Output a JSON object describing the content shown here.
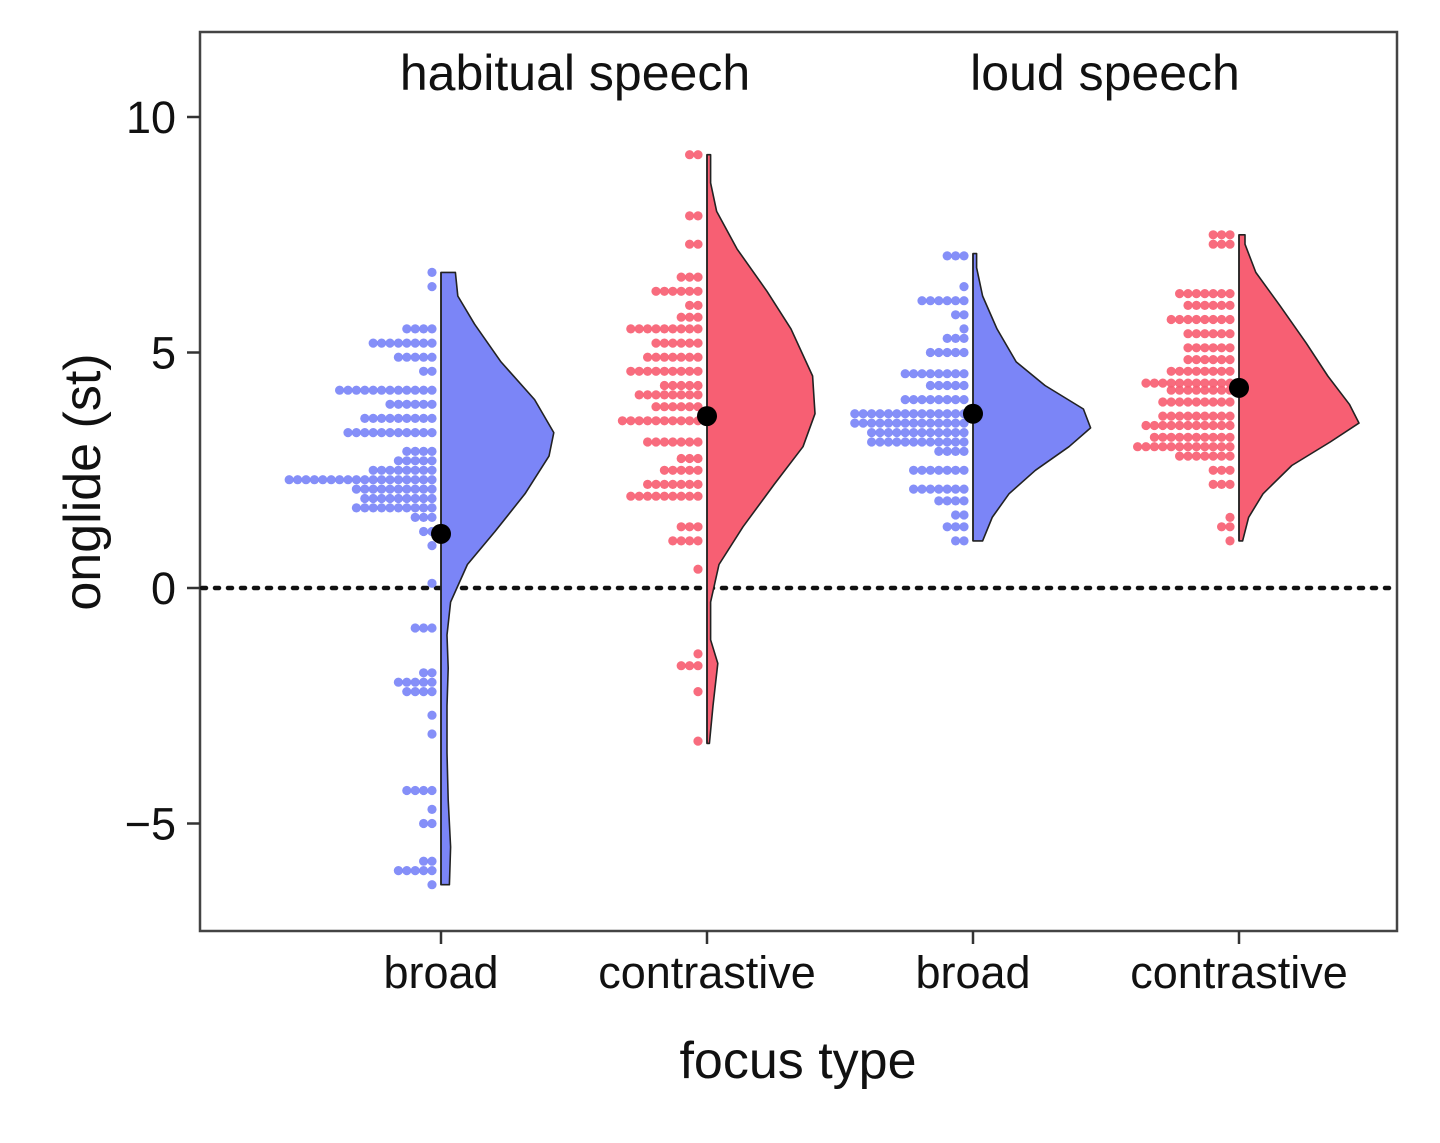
{
  "chart_data": {
    "type": "raincloud",
    "xlabel": "focus type",
    "ylabel": "onglide (st)",
    "ylim": [
      -7.3,
      12.0
    ],
    "yticks": [
      -5,
      0,
      5,
      10
    ],
    "ytick_labels": [
      "−5",
      "0",
      "5",
      "10"
    ],
    "reference_line": {
      "y": 0,
      "style": "dotted"
    },
    "groups": [
      {
        "label": "habitual speech"
      },
      {
        "label": "loud speech"
      }
    ],
    "categories": [
      "broad",
      "contrastive",
      "broad",
      "contrastive"
    ],
    "colors": {
      "broad": "#7b85f7",
      "contrastive": "#f75f73"
    },
    "series": [
      {
        "group": "habitual speech",
        "category": "broad",
        "color": "#7b85f7",
        "mean": 1.15,
        "range": [
          -6.3,
          6.7
        ],
        "density": [
          [
            -6.3,
            0.07
          ],
          [
            -5.5,
            0.08
          ],
          [
            -4.5,
            0.06
          ],
          [
            -3.5,
            0.05
          ],
          [
            -2.5,
            0.05
          ],
          [
            -1.7,
            0.06
          ],
          [
            -1.0,
            0.05
          ],
          [
            -0.3,
            0.08
          ],
          [
            0.5,
            0.22
          ],
          [
            1.2,
            0.45
          ],
          [
            2.0,
            0.7
          ],
          [
            2.8,
            0.9
          ],
          [
            3.3,
            0.94
          ],
          [
            4.0,
            0.78
          ],
          [
            4.8,
            0.5
          ],
          [
            5.6,
            0.28
          ],
          [
            6.2,
            0.14
          ],
          [
            6.7,
            0.12
          ]
        ],
        "dotplot": [
          [
            -6.3,
            1
          ],
          [
            -6.0,
            5
          ],
          [
            -5.8,
            2
          ],
          [
            -5.0,
            2
          ],
          [
            -4.7,
            1
          ],
          [
            -4.3,
            4
          ],
          [
            -3.1,
            1
          ],
          [
            -2.7,
            1
          ],
          [
            -2.2,
            4
          ],
          [
            -2.0,
            5
          ],
          [
            -1.8,
            2
          ],
          [
            -0.85,
            3
          ],
          [
            0.1,
            1
          ],
          [
            0.9,
            1
          ],
          [
            1.2,
            2
          ],
          [
            1.5,
            3
          ],
          [
            1.7,
            10
          ],
          [
            1.9,
            9
          ],
          [
            2.1,
            10
          ],
          [
            2.3,
            18
          ],
          [
            2.5,
            8
          ],
          [
            2.7,
            5
          ],
          [
            2.9,
            4
          ],
          [
            3.3,
            11
          ],
          [
            3.6,
            9
          ],
          [
            3.9,
            6
          ],
          [
            4.2,
            12
          ],
          [
            4.6,
            2
          ],
          [
            4.9,
            5
          ],
          [
            5.2,
            8
          ],
          [
            5.5,
            4
          ],
          [
            6.4,
            1
          ],
          [
            6.7,
            1
          ]
        ]
      },
      {
        "group": "habitual speech",
        "category": "contrastive",
        "color": "#f75f73",
        "mean": 3.65,
        "range": [
          -3.3,
          9.2
        ],
        "density": [
          [
            -3.3,
            0.02
          ],
          [
            -2.5,
            0.05
          ],
          [
            -1.6,
            0.09
          ],
          [
            -1.1,
            0.03
          ],
          [
            -0.3,
            0.03
          ],
          [
            0.5,
            0.1
          ],
          [
            1.3,
            0.3
          ],
          [
            2.2,
            0.56
          ],
          [
            3.0,
            0.8
          ],
          [
            3.7,
            0.9
          ],
          [
            4.5,
            0.88
          ],
          [
            5.5,
            0.7
          ],
          [
            6.3,
            0.5
          ],
          [
            7.2,
            0.25
          ],
          [
            8.0,
            0.08
          ],
          [
            8.6,
            0.03
          ],
          [
            9.2,
            0.03
          ]
        ],
        "dotplot": [
          [
            -3.25,
            1
          ],
          [
            -2.2,
            1
          ],
          [
            -1.65,
            3
          ],
          [
            -1.4,
            1
          ],
          [
            0.4,
            1
          ],
          [
            1.0,
            4
          ],
          [
            1.3,
            3
          ],
          [
            1.95,
            9
          ],
          [
            2.2,
            7
          ],
          [
            2.5,
            5
          ],
          [
            2.75,
            3
          ],
          [
            3.1,
            7
          ],
          [
            3.55,
            10
          ],
          [
            3.85,
            6
          ],
          [
            4.1,
            8
          ],
          [
            4.3,
            5
          ],
          [
            4.6,
            9
          ],
          [
            4.9,
            7
          ],
          [
            5.2,
            6
          ],
          [
            5.5,
            9
          ],
          [
            5.75,
            3
          ],
          [
            6.0,
            2
          ],
          [
            6.3,
            6
          ],
          [
            6.6,
            3
          ],
          [
            7.3,
            2
          ],
          [
            7.9,
            2
          ],
          [
            9.2,
            2
          ]
        ]
      },
      {
        "group": "loud speech",
        "category": "broad",
        "color": "#7b85f7",
        "mean": 3.7,
        "range": [
          1.0,
          7.1
        ],
        "density": [
          [
            1.0,
            0.08
          ],
          [
            1.5,
            0.16
          ],
          [
            2.0,
            0.3
          ],
          [
            2.5,
            0.52
          ],
          [
            3.0,
            0.8
          ],
          [
            3.4,
            0.98
          ],
          [
            3.8,
            0.92
          ],
          [
            4.3,
            0.6
          ],
          [
            4.8,
            0.36
          ],
          [
            5.5,
            0.2
          ],
          [
            6.2,
            0.08
          ],
          [
            6.8,
            0.03
          ],
          [
            7.1,
            0.03
          ]
        ],
        "dotplot": [
          [
            1.0,
            2
          ],
          [
            1.3,
            3
          ],
          [
            1.55,
            2
          ],
          [
            1.85,
            4
          ],
          [
            2.1,
            7
          ],
          [
            2.5,
            7
          ],
          [
            2.9,
            4
          ],
          [
            3.1,
            12
          ],
          [
            3.3,
            12
          ],
          [
            3.5,
            14
          ],
          [
            3.7,
            14
          ],
          [
            4.0,
            8
          ],
          [
            4.3,
            5
          ],
          [
            4.55,
            8
          ],
          [
            5.0,
            5
          ],
          [
            5.3,
            3
          ],
          [
            5.5,
            1
          ],
          [
            5.8,
            2
          ],
          [
            6.1,
            6
          ],
          [
            6.4,
            1
          ],
          [
            7.05,
            3
          ]
        ]
      },
      {
        "group": "loud speech",
        "category": "contrastive",
        "color": "#f75f73",
        "mean": 4.25,
        "range": [
          1.0,
          7.5
        ],
        "density": [
          [
            1.0,
            0.03
          ],
          [
            1.5,
            0.08
          ],
          [
            2.0,
            0.2
          ],
          [
            2.6,
            0.44
          ],
          [
            3.1,
            0.76
          ],
          [
            3.5,
            1.0
          ],
          [
            3.9,
            0.92
          ],
          [
            4.5,
            0.74
          ],
          [
            5.2,
            0.56
          ],
          [
            6.0,
            0.34
          ],
          [
            6.7,
            0.14
          ],
          [
            7.3,
            0.05
          ],
          [
            7.5,
            0.05
          ]
        ],
        "dotplot": [
          [
            1.0,
            1
          ],
          [
            1.3,
            2
          ],
          [
            1.5,
            1
          ],
          [
            2.2,
            3
          ],
          [
            2.5,
            3
          ],
          [
            2.8,
            7
          ],
          [
            3.0,
            12
          ],
          [
            3.2,
            10
          ],
          [
            3.45,
            11
          ],
          [
            3.65,
            9
          ],
          [
            3.95,
            9
          ],
          [
            4.2,
            8
          ],
          [
            4.35,
            11
          ],
          [
            4.6,
            8
          ],
          [
            4.85,
            6
          ],
          [
            5.1,
            6
          ],
          [
            5.4,
            6
          ],
          [
            5.7,
            8
          ],
          [
            6.0,
            6
          ],
          [
            6.25,
            7
          ],
          [
            7.3,
            3
          ],
          [
            7.5,
            3
          ]
        ]
      }
    ],
    "grid": false,
    "legend": "none"
  }
}
